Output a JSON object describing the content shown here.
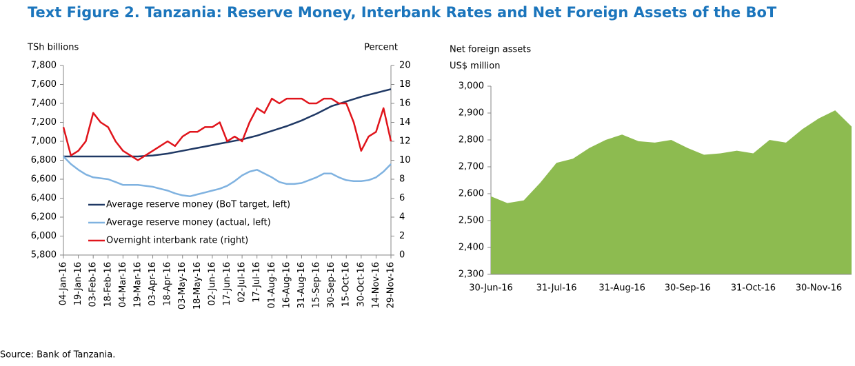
{
  "figure_title": "Text Figure 2. Tanzania: Reserve Money, Interbank Rates and Net Foreign Assets of the BoT",
  "source": "Source: Bank of Tanzania.",
  "chart_data": [
    {
      "type": "line",
      "ylabel": "TSh billions",
      "y2label": "Percent",
      "categories": [
        "04-Jan-16",
        null,
        "19-Jan-16",
        null,
        "03-Feb-16",
        null,
        "18-Feb-16",
        null,
        "04-Mar-16",
        null,
        "19-Mar-16",
        null,
        "03-Apr-16",
        null,
        "18-Apr-16",
        null,
        "03-May-16",
        null,
        "18-May-16",
        null,
        "02-Jun-16",
        null,
        "17-Jun-16",
        null,
        "02-Jul-16",
        null,
        "17-Jul-16",
        null,
        "01-Aug-16",
        null,
        "16-Aug-16",
        null,
        "31-Aug-16",
        null,
        "15-Sep-16",
        null,
        "30-Sep-16",
        null,
        "15-Oct-16",
        null,
        "30-Oct-16",
        null,
        "14-Nov-16",
        null,
        "29-Nov-16"
      ],
      "ylim": [
        5800,
        7800
      ],
      "yticks": [
        {
          "value": 5800,
          "label": "5,800"
        },
        {
          "value": 6000,
          "label": "6,000"
        },
        {
          "value": 6200,
          "label": "6,200"
        },
        {
          "value": 6400,
          "label": "6,400"
        },
        {
          "value": 6600,
          "label": "6,600"
        },
        {
          "value": 6800,
          "label": "6,800"
        },
        {
          "value": 7000,
          "label": "7,000"
        },
        {
          "value": 7200,
          "label": "7,200"
        },
        {
          "value": 7400,
          "label": "7,400"
        },
        {
          "value": 7600,
          "label": "7,600"
        },
        {
          "value": 7800,
          "label": "7,800"
        }
      ],
      "y2lim": [
        0,
        20
      ],
      "y2ticks": [
        0,
        2,
        4,
        6,
        8,
        10,
        12,
        14,
        16,
        18,
        20
      ],
      "legend": "left",
      "series": [
        {
          "name": "Average reserve money (BoT target, left)",
          "color": "#1f3864",
          "values": [
            6840,
            6840,
            6840,
            6840,
            6840,
            6840,
            6840,
            6840,
            6840,
            6840,
            6840,
            6845,
            6850,
            6860,
            6870,
            6885,
            6900,
            6915,
            6930,
            6945,
            6960,
            6975,
            6990,
            7005,
            7020,
            7040,
            7060,
            7085,
            7110,
            7135,
            7160,
            7190,
            7220,
            7255,
            7290,
            7330,
            7370,
            7395,
            7420,
            7445,
            7470,
            7490,
            7510,
            7530,
            7550
          ]
        },
        {
          "name": "Average reserve money (actual, left)",
          "color": "#7fb2e0",
          "values": [
            6840,
            6760,
            6700,
            6650,
            6620,
            6610,
            6600,
            6570,
            6540,
            6540,
            6540,
            6530,
            6520,
            6500,
            6480,
            6450,
            6430,
            6420,
            6440,
            6460,
            6480,
            6500,
            6530,
            6580,
            6640,
            6680,
            6700,
            6660,
            6620,
            6570,
            6550,
            6550,
            6560,
            6590,
            6620,
            6660,
            6660,
            6620,
            6590,
            6580,
            6580,
            6590,
            6620,
            6680,
            6760
          ]
        },
        {
          "name": "Overnight interbank rate (right)",
          "color": "#e0141b",
          "axis": "y2",
          "values": [
            13.5,
            10.5,
            11,
            12,
            15,
            14,
            13.5,
            12,
            11,
            10.5,
            10,
            10.5,
            11,
            11.5,
            12,
            11.5,
            12.5,
            13,
            13,
            13.5,
            13.5,
            14,
            12,
            12.5,
            12,
            14,
            15.5,
            15,
            16.5,
            16,
            16.5,
            16.5,
            16.5,
            16,
            16,
            16.5,
            16.5,
            16,
            16,
            14,
            11,
            12.5,
            13,
            15.5,
            12
          ]
        }
      ]
    },
    {
      "type": "area",
      "ylabel": [
        "Net foreign assets",
        "US$ million"
      ],
      "categories": [
        "30-Jun-16",
        null,
        null,
        null,
        "31-Jul-16",
        null,
        null,
        null,
        "31-Aug-16",
        null,
        null,
        null,
        "30-Sep-16",
        null,
        null,
        null,
        "31-Oct-16",
        null,
        null,
        null,
        "30-Nov-16",
        null,
        null
      ],
      "values": [
        2590,
        2565,
        2575,
        2640,
        2715,
        2730,
        2770,
        2800,
        2820,
        2795,
        2790,
        2800,
        2770,
        2745,
        2750,
        2760,
        2750,
        2800,
        2790,
        2840,
        2880,
        2910,
        2850
      ],
      "color": "#8dbb50",
      "ylim": [
        2300,
        3000
      ],
      "yticks": [
        {
          "value": 2300,
          "label": "2,300"
        },
        {
          "value": 2400,
          "label": "2,400"
        },
        {
          "value": 2500,
          "label": "2,500"
        },
        {
          "value": 2600,
          "label": "2,600"
        },
        {
          "value": 2700,
          "label": "2,700"
        },
        {
          "value": 2800,
          "label": "2,800"
        },
        {
          "value": 2900,
          "label": "2,900"
        },
        {
          "value": 3000,
          "label": "3,000"
        }
      ]
    }
  ]
}
